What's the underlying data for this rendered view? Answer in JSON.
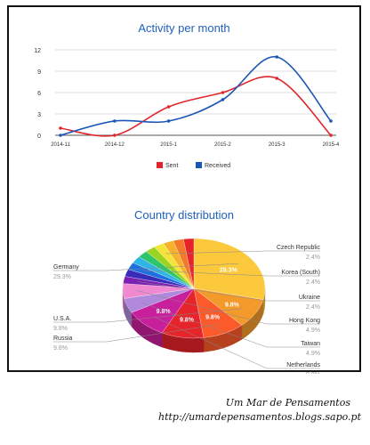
{
  "chart_data": [
    {
      "type": "line",
      "title": "Activity per month",
      "categories": [
        "2014-11",
        "2014-12",
        "2015-1",
        "2015-2",
        "2015-3",
        "2015-4"
      ],
      "series": [
        {
          "name": "Sent",
          "color": "#e0262b",
          "values": [
            1,
            0,
            4,
            6,
            8,
            0
          ]
        },
        {
          "name": "Received",
          "color": "#1a56b8",
          "values": [
            0,
            2,
            2,
            5,
            11,
            2
          ]
        }
      ],
      "yticks": [
        "0",
        "3",
        "6",
        "9",
        "12"
      ],
      "ylim": [
        0,
        12
      ],
      "grid": true,
      "legend": "bottom"
    },
    {
      "type": "pie",
      "title": "Country distribution",
      "slices": [
        {
          "label": "Germany",
          "pct": "29.3%",
          "value": 29.3,
          "color": "#fbc93b"
        },
        {
          "label": "U.S.A.",
          "pct": "9.8%",
          "value": 9.8,
          "color": "#f39a2a"
        },
        {
          "label": "Russia",
          "pct": "9.8%",
          "value": 9.8,
          "color": "#fd5a2b"
        },
        {
          "label": "",
          "pct": "9.8%",
          "value": 9.8,
          "color": "#e6242b"
        },
        {
          "label": "Netherlands",
          "pct": "9.8%",
          "value": 9.8,
          "color": "#c81f9c"
        },
        {
          "label": "Taiwan",
          "pct": "4.9%",
          "value": 4.9,
          "color": "#b089dd"
        },
        {
          "label": "Hong Kong",
          "pct": "4.9%",
          "value": 4.9,
          "color": "#f08ad0"
        },
        {
          "label": "Ukraine",
          "pct": "2.4%",
          "value": 2.4,
          "color": "#7e1fb3"
        },
        {
          "label": "",
          "pct": "",
          "value": 2.4,
          "color": "#3a2bb8"
        },
        {
          "label": "Korea (South)",
          "pct": "2.4%",
          "value": 2.4,
          "color": "#1e6fe0"
        },
        {
          "label": "",
          "pct": "",
          "value": 2.4,
          "color": "#2fb4e6"
        },
        {
          "label": "",
          "pct": "",
          "value": 2.4,
          "color": "#2ec46c"
        },
        {
          "label": "",
          "pct": "",
          "value": 2.4,
          "color": "#9ad321"
        },
        {
          "label": "Czech Republic",
          "pct": "2.4%",
          "value": 2.4,
          "color": "#f4e43a"
        },
        {
          "label": "",
          "pct": "",
          "value": 2.4,
          "color": "#f7b12c"
        },
        {
          "label": "",
          "pct": "",
          "value": 2.4,
          "color": "#f47a2b"
        },
        {
          "label": "",
          "pct": "",
          "value": 2.4,
          "color": "#e6242b"
        }
      ]
    }
  ],
  "footer": {
    "line1": "Um Mar de Pensamentos",
    "line2": "http://umardepensamentos.blogs.sapo.pt"
  }
}
